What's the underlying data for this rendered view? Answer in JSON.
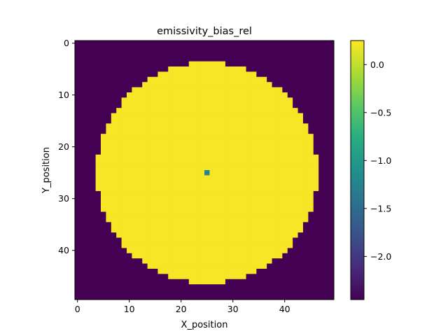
{
  "chart_data": {
    "type": "heatmap",
    "title": "emissivity_bias_rel",
    "xlabel": "X_position",
    "ylabel": "Y_position",
    "grid": {
      "rows": 50,
      "cols": 50,
      "fill_value_outside": -2.45,
      "disk": {
        "center_x": 25.5,
        "center_y": 25.5,
        "radius": 21.3,
        "value_inside": 0.22
      },
      "anomalies": [
        {
          "x": 25,
          "y": 25,
          "value": -1.25
        }
      ]
    },
    "xticks": [
      0,
      10,
      20,
      30,
      40
    ],
    "yticks": [
      0,
      10,
      20,
      30,
      40
    ],
    "colorbar": {
      "colormap": "viridis",
      "min": -2.45,
      "max": 0.25,
      "ticks": [
        0.0,
        -0.5,
        -1.0,
        -1.5,
        -2.0
      ],
      "tick_labels": [
        "0.0",
        "−0.5",
        "−1.0",
        "−1.5",
        "−2.0"
      ]
    }
  }
}
